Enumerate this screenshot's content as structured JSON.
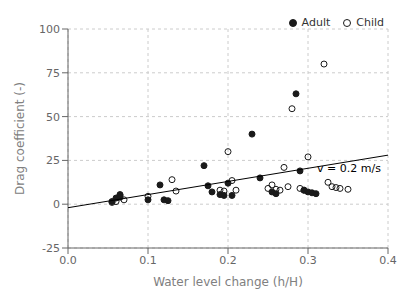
{
  "chart_data": {
    "type": "scatter",
    "x_label": "Water level change (h/H)",
    "y_label": "Drag coefficient (-)",
    "xlim": [
      0.0,
      0.4
    ],
    "ylim": [
      -25,
      100
    ],
    "xticks": [
      {
        "value": 0,
        "label": "0.0"
      },
      0.1,
      0.2,
      0.3,
      0.4
    ],
    "yticks": [
      -25,
      0,
      25,
      50,
      75,
      100
    ],
    "grid": true,
    "legend": "upper right",
    "series": [
      {
        "name": "Adult",
        "type": "scatter",
        "marker": "circle",
        "color": "#1a1a1a",
        "x": [
          0.055,
          0.06,
          0.065,
          0.065,
          0.1,
          0.115,
          0.12,
          0.125,
          0.17,
          0.175,
          0.18,
          0.19,
          0.195,
          0.2,
          0.205,
          0.23,
          0.24,
          0.255,
          0.26,
          0.285,
          0.29,
          0.295,
          0.3,
          0.305,
          0.31
        ],
        "values": [
          1.5,
          3.5,
          5.5,
          4.0,
          2.5,
          11.0,
          2.5,
          2.0,
          22.0,
          10.5,
          7.0,
          5.5,
          5.0,
          12.0,
          5.0,
          40.0,
          15.0,
          7.0,
          6.0,
          63.0,
          19.0,
          8.0,
          7.0,
          6.5,
          6.0
        ]
      },
      {
        "name": "Child",
        "type": "scatter",
        "marker": "open_circle",
        "color": "#1a1a1a",
        "x": [
          0.055,
          0.06,
          0.065,
          0.07,
          0.1,
          0.13,
          0.135,
          0.19,
          0.195,
          0.2,
          0.205,
          0.21,
          0.25,
          0.255,
          0.26,
          0.265,
          0.27,
          0.275,
          0.28,
          0.29,
          0.295,
          0.3,
          0.32,
          0.325,
          0.33,
          0.335,
          0.34,
          0.35
        ],
        "values": [
          1.0,
          1.5,
          5.0,
          2.5,
          4.5,
          14.0,
          7.5,
          8.0,
          7.5,
          30.0,
          13.5,
          8.0,
          9.0,
          11.0,
          8.5,
          8.0,
          21.0,
          10.0,
          54.5,
          9.0,
          8.0,
          27.0,
          80.0,
          12.5,
          10.0,
          9.5,
          9.0,
          8.5
        ]
      },
      {
        "type": "line",
        "color": "#000000",
        "x": [
          0.0,
          0.4
        ],
        "values": [
          -2.0,
          28.0
        ]
      }
    ],
    "annotations": [
      {
        "text": "v = 0.2 m/s",
        "x": 0.305,
        "y": 20.5
      }
    ]
  }
}
